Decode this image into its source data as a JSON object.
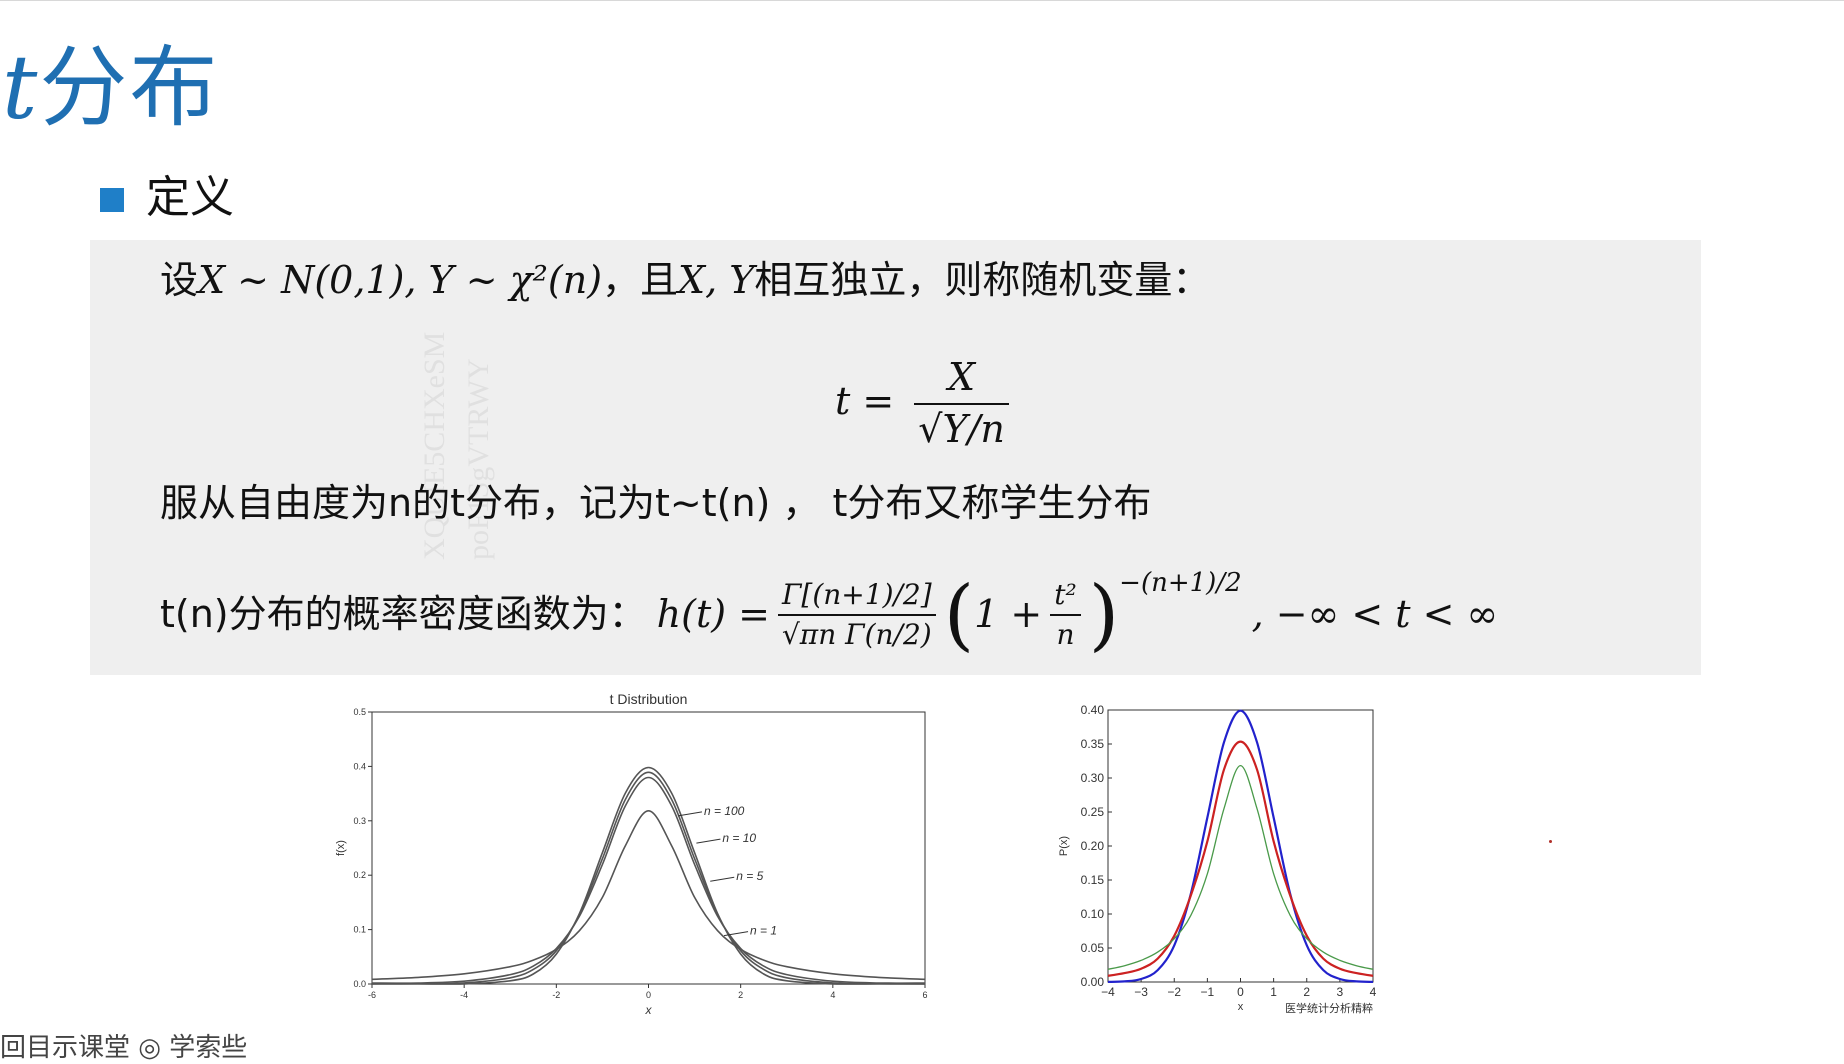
{
  "slide": {
    "title_var": "t",
    "title_text": "分布",
    "section": "定义"
  },
  "definition": {
    "cond_prefix": "设",
    "cond_math": "X ~ N(0,1), Y ~ χ²(n)",
    "cond_mid": "，且",
    "cond_vars": "X, Y",
    "cond_suffix": "相互独立，则称随机变量：",
    "formula_lhs": "t =",
    "formula_num": "X",
    "formula_den": "√Y/n",
    "law_text": "服从自由度为n的t分布，记为t~t(n) ， t分布又称学生分布",
    "pdf_label": "t(n)分布的概率密度函数为：",
    "pdf_lhs": "h(t) =",
    "pdf_num": "Γ[(n+1)/2]",
    "pdf_den": "√πn Γ(n/2)",
    "pdf_paren_body": "1 +",
    "pdf_inner_num": "t²",
    "pdf_inner_den": "n",
    "pdf_exp": "−(n+1)/2",
    "pdf_domain": ", −∞ < t < ∞"
  },
  "watermark": {
    "line1": "XQUIE5CHXeSM",
    "line2": "poF1SgVTRWY"
  },
  "bottom": {
    "text": "回目示课堂   ◎ 学索些"
  },
  "chart_data": [
    {
      "type": "line",
      "title": "t Distribution",
      "xlabel": "x",
      "ylabel": "f(x)",
      "xlim": [
        -6,
        6
      ],
      "ylim": [
        0,
        0.5
      ],
      "xticks": [
        "-6",
        "-4",
        "-2",
        "0",
        "2",
        "4",
        "6"
      ],
      "yticks": [
        "0.0",
        "0.1",
        "0.2",
        "0.3",
        "0.4",
        "0.5"
      ],
      "line_color": "#555555",
      "x": [
        -6,
        -5,
        -4,
        -3,
        -2.5,
        -2,
        -1.5,
        -1,
        -0.5,
        0,
        0.5,
        1,
        1.5,
        2,
        2.5,
        3,
        4,
        5,
        6
      ],
      "series": [
        {
          "name": "n = 1",
          "values": [
            0.0086,
            0.0122,
            0.0187,
            0.0318,
            0.0439,
            0.0637,
            0.0979,
            0.1592,
            0.2546,
            0.3183,
            0.2546,
            0.1592,
            0.0979,
            0.0637,
            0.0439,
            0.0318,
            0.0187,
            0.0122,
            0.0086
          ]
        },
        {
          "name": "n = 5",
          "values": [
            0.0018,
            0.0018,
            0.0051,
            0.0173,
            0.0329,
            0.0651,
            0.1245,
            0.2197,
            0.3279,
            0.3796,
            0.3279,
            0.2197,
            0.1245,
            0.0651,
            0.0329,
            0.0173,
            0.0051,
            0.0018,
            0.0018
          ]
        },
        {
          "name": "n = 10",
          "values": [
            0.0001,
            0.0005,
            0.002,
            0.0114,
            0.0269,
            0.0611,
            0.1274,
            0.2304,
            0.3397,
            0.3891,
            0.3397,
            0.2304,
            0.1274,
            0.0611,
            0.0269,
            0.0114,
            0.002,
            0.0005,
            0.0001
          ]
        },
        {
          "name": "n = 100",
          "values": [
            0.0,
            0.0,
            0.0002,
            0.0059,
            0.0183,
            0.055,
            0.1295,
            0.2413,
            0.3513,
            0.3979,
            0.3513,
            0.2413,
            0.1295,
            0.055,
            0.0183,
            0.0059,
            0.0002,
            0.0,
            0.0
          ]
        }
      ],
      "annotations": [
        "n = 100",
        "n = 10",
        "n = 5",
        "n = 1"
      ]
    },
    {
      "type": "line",
      "title": "",
      "xlabel": "x",
      "ylabel": "P(x)",
      "xlim": [
        -4,
        4
      ],
      "ylim": [
        0,
        0.4
      ],
      "xticks": [
        "−4",
        "−3",
        "−2",
        "−1",
        "0",
        "1",
        "2",
        "3",
        "4"
      ],
      "yticks": [
        "0.00",
        "0.05",
        "0.10",
        "0.15",
        "0.20",
        "0.25",
        "0.30",
        "0.35",
        "0.40"
      ],
      "x": [
        -4,
        -3.5,
        -3,
        -2.5,
        -2,
        -1.5,
        -1,
        -0.5,
        0,
        0.5,
        1,
        1.5,
        2,
        2.5,
        3,
        3.5,
        4
      ],
      "series": [
        {
          "color": "#2222cc",
          "values": [
            0.0001,
            0.0009,
            0.0044,
            0.0175,
            0.054,
            0.1295,
            0.242,
            0.3521,
            0.3989,
            0.3521,
            0.242,
            0.1295,
            0.054,
            0.0175,
            0.0044,
            0.0009,
            0.0001
          ]
        },
        {
          "color": "#cc2222",
          "values": [
            0.0091,
            0.0131,
            0.0196,
            0.0344,
            0.068,
            0.1272,
            0.207,
            0.312,
            0.3536,
            0.312,
            0.207,
            0.1272,
            0.068,
            0.0344,
            0.0196,
            0.0131,
            0.0091
          ]
        },
        {
          "color": "#4a9a4a",
          "values": [
            0.0187,
            0.024,
            0.0318,
            0.0439,
            0.0637,
            0.0979,
            0.1592,
            0.2546,
            0.3183,
            0.2546,
            0.1592,
            0.0979,
            0.0637,
            0.0439,
            0.0318,
            0.024,
            0.0187
          ]
        }
      ],
      "credit": "医学统计分析精粹"
    }
  ]
}
